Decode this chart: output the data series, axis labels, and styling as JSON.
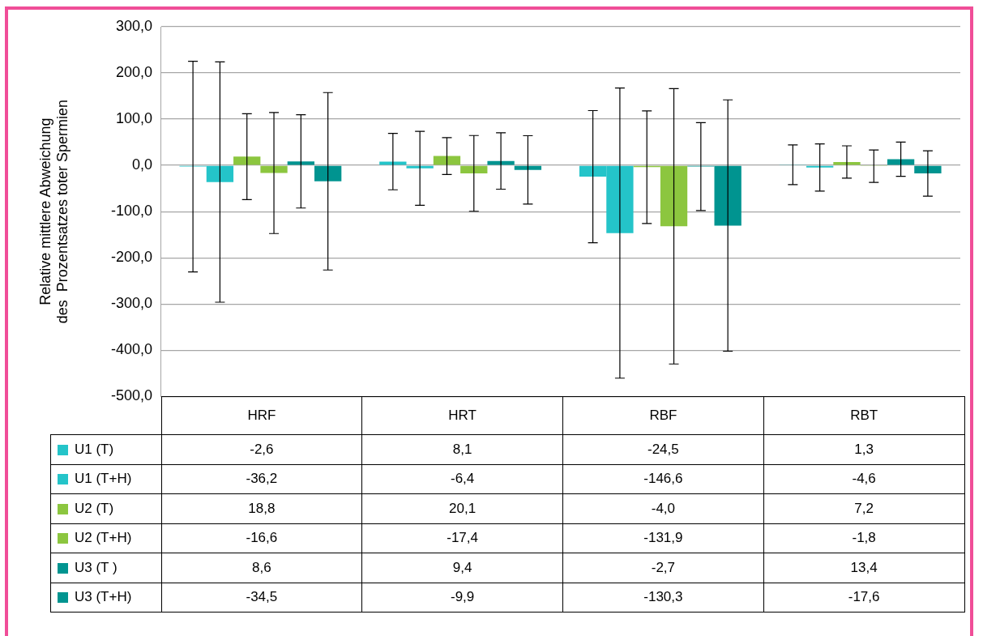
{
  "chart_data": {
    "type": "bar",
    "ylabel": "Relative mittlere Abweichung\ndes  Prozentsatzes toter Spermien",
    "categories": [
      "HRF",
      "HRT",
      "RBF",
      "RBT"
    ],
    "series": [
      {
        "name": "U1 (T)",
        "color": "#24c4c9",
        "values": [
          -2.6,
          8.1,
          -24.5,
          1.3
        ],
        "value_labels": [
          "-2,6",
          "8,1",
          "-24,5",
          "1,3"
        ],
        "errors": [
          228,
          61,
          143,
          43
        ]
      },
      {
        "name": "U1 (T+H)",
        "color": "#24c4c9",
        "values": [
          -36.2,
          -6.4,
          -146.6,
          -4.6
        ],
        "value_labels": [
          "-36,2",
          "-6,4",
          "-146,6",
          "-4,6"
        ],
        "errors": [
          260,
          80,
          314,
          51
        ]
      },
      {
        "name": "U2 (T)",
        "color": "#8cc63f",
        "values": [
          18.8,
          20.1,
          -4.0,
          7.2
        ],
        "value_labels": [
          "18,8",
          "20,1",
          "-4,0",
          "7,2"
        ],
        "errors": [
          93,
          40,
          122,
          35
        ]
      },
      {
        "name": "U2 (T+H)",
        "color": "#8cc63f",
        "values": [
          -16.6,
          -17.4,
          -131.9,
          -1.8
        ],
        "value_labels": [
          "-16,6",
          "-17,4",
          "-131,9",
          "-1,8"
        ],
        "errors": [
          131,
          82,
          298,
          35
        ]
      },
      {
        "name": "U3 (T )",
        "color": "#009490",
        "values": [
          8.6,
          9.4,
          -2.7,
          13.4
        ],
        "value_labels": [
          "8,6",
          "9,4",
          "-2,7",
          "13,4"
        ],
        "errors": [
          101,
          61,
          95,
          37
        ]
      },
      {
        "name": "U3 (T+H)",
        "color": "#009490",
        "values": [
          -34.5,
          -9.9,
          -130.3,
          -17.6
        ],
        "value_labels": [
          "-34,5",
          "-9,9",
          "-130,3",
          "-17,6"
        ],
        "errors": [
          192,
          74,
          272,
          49
        ]
      }
    ],
    "ylim": [
      -500,
      300
    ],
    "yticks": [
      {
        "value": -500,
        "label": "-500,0"
      },
      {
        "value": -400,
        "label": "-400,0"
      },
      {
        "value": -300,
        "label": "-300,0"
      },
      {
        "value": -200,
        "label": "-200,0"
      },
      {
        "value": -100,
        "label": "-100,0"
      },
      {
        "value": 0,
        "label": "0,0"
      },
      {
        "value": 100,
        "label": "100,0"
      },
      {
        "value": 200,
        "label": "200,0"
      },
      {
        "value": 300,
        "label": "300,0"
      }
    ],
    "grid": "y",
    "legend": "bottom"
  }
}
